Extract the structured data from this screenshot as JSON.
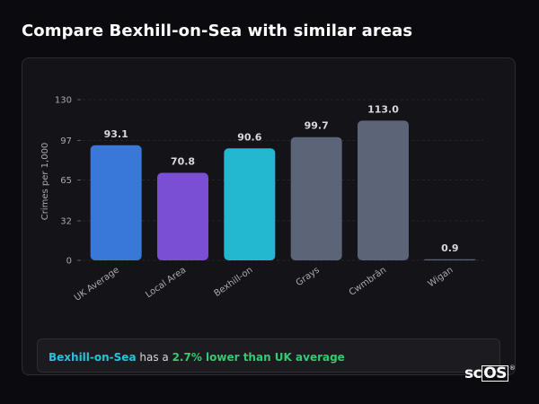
{
  "page": {
    "title": "Compare Bexhill-on-Sea with similar areas"
  },
  "chart_data": {
    "type": "bar",
    "categories": [
      "UK Average",
      "Local Area",
      "Bexhill-on-Sea",
      "Grays",
      "Cwmbrân",
      "Wigan"
    ],
    "category_labels_shown": [
      "UK Average",
      "Local Area",
      "Bexhill-on",
      "Grays",
      "Cwmbrân",
      "Wigan"
    ],
    "values": [
      93.1,
      70.8,
      90.6,
      99.7,
      113.0,
      0.9
    ],
    "value_labels": [
      "93.1",
      "70.8",
      "90.6",
      "99.7",
      "113.0",
      "0.9"
    ],
    "colors": [
      "#3a78d8",
      "#7b4fd4",
      "#22b8cf",
      "#5c6578",
      "#5c6578",
      "#5c6578"
    ],
    "ylabel": "Crimes per 1,000",
    "ylim": [
      0,
      130
    ],
    "yticks": [
      0,
      32,
      65,
      97,
      130
    ],
    "grid": true
  },
  "note": {
    "place": "Bexhill-on-Sea",
    "middle": " has a ",
    "difference": "2.7% lower than UK average"
  },
  "brand": {
    "prefix": "sc",
    "boxed": "OS",
    "mark": "®"
  }
}
